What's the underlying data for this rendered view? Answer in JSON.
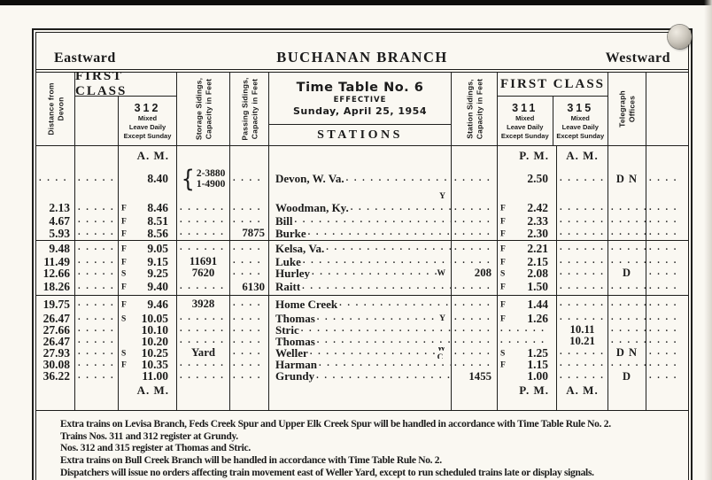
{
  "colors": {
    "paper": "#faf8f2",
    "ink": "#1b1b1b"
  },
  "masthead": {
    "left": "Eastward",
    "title": "BUCHANAN BRANCH",
    "right": "Westward"
  },
  "header": {
    "distance_label": "Distance from\nDevon",
    "first_class_left": "FIRST CLASS",
    "first_class_right": "FIRST CLASS",
    "train_312": {
      "number": "312",
      "lines": [
        "Mixed",
        "Leave Daily",
        "Except Sunday"
      ]
    },
    "train_311": {
      "number": "311",
      "lines": [
        "Mixed",
        "Leave Daily",
        "Except Sunday"
      ]
    },
    "train_315": {
      "number": "315",
      "lines": [
        "Mixed",
        "Leave Daily",
        "Except Sunday"
      ]
    },
    "storage_label": "Storage Sidings,\nCapacity in Feet",
    "passing_label": "Passing Sidings,\nCapacity in Feet",
    "station_sidings_label": "Station Sidings,\nCapacity in Feet",
    "telegraph_label": "Telegraph\nOffices",
    "timetable": {
      "line1": "Time Table No. 6",
      "line2": "EFFECTIVE",
      "line3": "Sunday, April 25, 1954"
    },
    "stations_label": "STATIONS"
  },
  "table": {
    "groups": [
      {
        "rows": [
          {
            "t312": "A. M.",
            "t311": "P. M.",
            "t315": "A. M."
          },
          {
            "distance": "",
            "col2": "",
            "t312": "8.40",
            "storage": [
              "2-3880",
              "1-4900"
            ],
            "passing": "",
            "station": "Devon, W. Va.",
            "sidings": "",
            "t311": "2.50",
            "t315": "",
            "telegraph": "D N",
            "extra": ""
          },
          {
            "suffix": "Y"
          },
          {
            "distance": "2.13",
            "col2": "",
            "f312": "F",
            "t312": "8.46",
            "storage": "",
            "passing": "",
            "station": "Woodman, Ky.",
            "sidings": "",
            "f311": "F",
            "t311": "2.42",
            "t315": "",
            "telegraph": "",
            "extra": ""
          },
          {
            "distance": "4.67",
            "col2": "",
            "f312": "F",
            "t312": "8.51",
            "storage": "",
            "passing": "",
            "station": "Bill",
            "sidings": "",
            "f311": "F",
            "t311": "2.33",
            "t315": "",
            "telegraph": "",
            "extra": ""
          },
          {
            "distance": "5.93",
            "col2": "",
            "f312": "F",
            "t312": "8.56",
            "storage": "",
            "passing": "7875",
            "station": "Burke",
            "sidings": "",
            "f311": "F",
            "t311": "2.30",
            "t315": "",
            "telegraph": "",
            "extra": ""
          }
        ]
      },
      {
        "rows": [
          {
            "distance": "9.48",
            "col2": "",
            "f312": "F",
            "t312": "9.05",
            "storage": "",
            "passing": "",
            "station": "Kelsa, Va.",
            "sidings": "",
            "f311": "F",
            "t311": "2.21",
            "t315": "",
            "telegraph": "",
            "extra": ""
          },
          {
            "distance": "11.49",
            "col2": "",
            "f312": "F",
            "t312": "9.15",
            "storage": "11691",
            "passing": "",
            "station": "Luke",
            "sidings": "",
            "f311": "F",
            "t311": "2.15",
            "t315": "",
            "telegraph": "",
            "extra": ""
          },
          {
            "distance": "12.66",
            "col2": "",
            "f312": "S",
            "t312": "9.25",
            "storage": "7620",
            "passing": "",
            "station": "Hurley",
            "suffix": "W",
            "sidings": "208",
            "f311": "S",
            "t311": "2.08",
            "t315": "",
            "telegraph": "D",
            "extra": ""
          },
          {
            "distance": "18.26",
            "col2": "",
            "f312": "F",
            "t312": "9.40",
            "storage": "",
            "passing": "6130",
            "station": "Raitt",
            "sidings": "",
            "f311": "F",
            "t311": "1.50",
            "t315": "",
            "telegraph": "",
            "extra": ""
          }
        ]
      },
      {
        "rows": [
          {
            "distance": "19.75",
            "col2": "",
            "f312": "F",
            "t312": "9.46",
            "storage": "3928",
            "passing": "",
            "station": "Home Creek",
            "sidings": "",
            "f311": "F",
            "t311": "1.44",
            "t315": "",
            "telegraph": "",
            "extra": ""
          },
          {
            "distance": "26.47",
            "col2": "",
            "f312": "S",
            "t312": "10.05",
            "storage": "",
            "passing": "",
            "station": "Thomas",
            "suffix": "Y",
            "sidings": "",
            "f311": "F",
            "t311": "1.26",
            "t315": "",
            "telegraph": "",
            "extra": ""
          },
          {
            "distance": "27.66",
            "col2": "",
            "t312": "10.10",
            "storage": "",
            "passing": "",
            "station": "Stric",
            "sidings": "",
            "t311": "",
            "t315": "10.11",
            "telegraph": "",
            "extra": ""
          },
          {
            "distance": "26.47",
            "col2": "",
            "t312": "10.20",
            "storage": "",
            "passing": "",
            "station": "Thomas",
            "sidings": "",
            "t311": "",
            "t315": "10.21",
            "telegraph": "",
            "extra": ""
          },
          {
            "distance": "27.93",
            "col2": "",
            "f312": "S",
            "t312": "10.25",
            "storage": "Yard",
            "passing": "",
            "station": "Weller",
            "suffix": "W C",
            "sidings": "",
            "f311": "S",
            "t311": "1.25",
            "t315": "",
            "telegraph": "D N",
            "extra": ""
          },
          {
            "distance": "30.08",
            "col2": "",
            "f312": "F",
            "t312": "10.35",
            "storage": "",
            "passing": "",
            "station": "Harman",
            "sidings": "",
            "f311": "F",
            "t311": "1.15",
            "t315": "",
            "telegraph": "",
            "extra": ""
          },
          {
            "distance": "36.22",
            "col2": "",
            "t312": "11.00",
            "storage": "",
            "passing": "",
            "station": "Grundy",
            "sidings": "1455",
            "t311": "1.00",
            "t315": "",
            "telegraph": "D",
            "extra": ""
          },
          {
            "t312": "A. M.",
            "t311": "P. M.",
            "t315": "A. M."
          },
          {}
        ]
      }
    ]
  },
  "notes": [
    "Extra trains on Levisa Branch, Feds Creek Spur and Upper Elk Creek Spur will be handled in accordance with Time Table Rule No. 2.",
    "Trains Nos. 311 and 312 register at Grundy.",
    "Nos. 312 and 315 register at Thomas and Stric.",
    "Extra trains on Bull Creek Branch will be handled in accordance with Time Table Rule No. 2.",
    "Dispatchers will issue no orders affecting train movement east of Weller Yard, except to run scheduled trains late or display signals."
  ]
}
